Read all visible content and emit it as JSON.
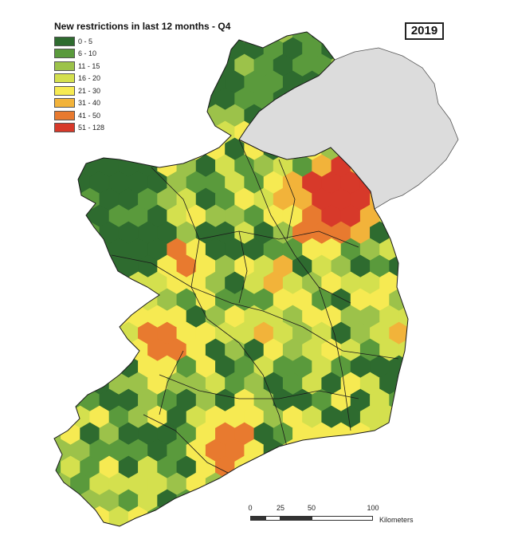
{
  "legend": {
    "title": "New restrictions in last 12 months - Q4",
    "items": [
      {
        "label": "0 - 5",
        "color": "#2e6b2f"
      },
      {
        "label": "6 - 10",
        "color": "#5a9a3c"
      },
      {
        "label": "11 - 15",
        "color": "#9cc24a"
      },
      {
        "label": "16 - 20",
        "color": "#d4e04e"
      },
      {
        "label": "21 - 30",
        "color": "#f6ea52"
      },
      {
        "label": "31 - 40",
        "color": "#f2b33a"
      },
      {
        "label": "41 - 50",
        "color": "#e87a2f"
      },
      {
        "label": "51 - 128",
        "color": "#d7392a"
      }
    ]
  },
  "year": "2019",
  "scale": {
    "ticks": [
      "0",
      "25",
      "50",
      "100"
    ],
    "units": "Kilometers"
  },
  "colors": {
    "northern_ireland_fill": "#dcdcdc",
    "border": "#1a1a1a"
  }
}
